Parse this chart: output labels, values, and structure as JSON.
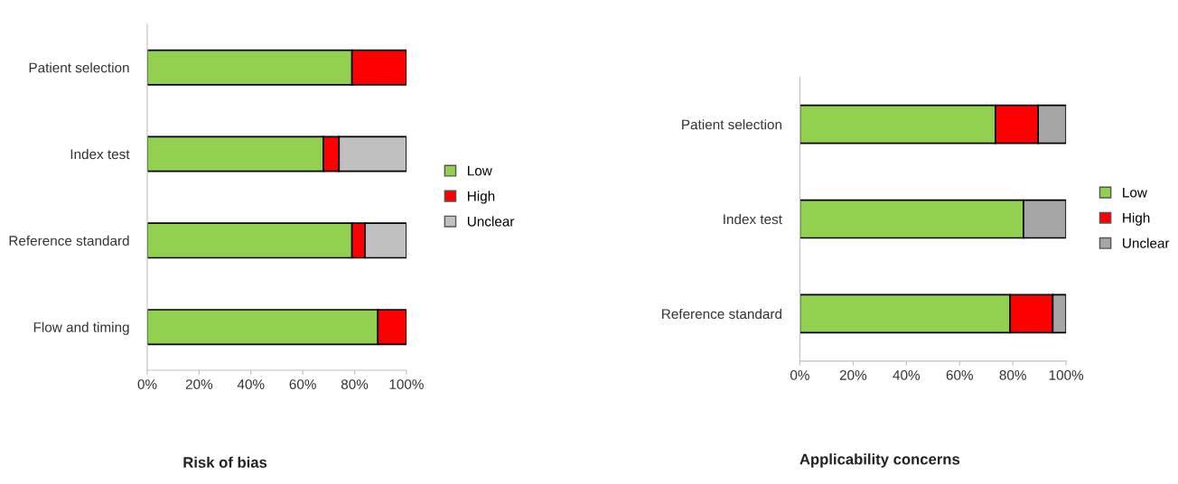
{
  "chart_data": [
    {
      "type": "bar",
      "orientation": "horizontal",
      "stacked": true,
      "title": "Risk of bias",
      "categories": [
        "Patient selection",
        "Index test",
        "Reference standard",
        "Flow and timing"
      ],
      "series": [
        {
          "name": "Low",
          "color": "#92d050",
          "values": [
            79,
            68,
            79,
            89
          ]
        },
        {
          "name": "High",
          "color": "#ff0000",
          "values": [
            21,
            6,
            5,
            11
          ]
        },
        {
          "name": "Unclear",
          "color": "#c0c0c0",
          "values": [
            0,
            26,
            16,
            0
          ]
        }
      ],
      "xlim": [
        0,
        100
      ],
      "xticks": [
        {
          "value": 0,
          "label": "0%"
        },
        {
          "value": 20,
          "label": "20%"
        },
        {
          "value": 40,
          "label": "40%"
        },
        {
          "value": 60,
          "label": "60%"
        },
        {
          "value": 80,
          "label": "80%"
        },
        {
          "value": 100,
          "label": "100%"
        }
      ],
      "grid": false,
      "legend": "right"
    },
    {
      "type": "bar",
      "orientation": "horizontal",
      "stacked": true,
      "title": "Applicability concerns",
      "categories": [
        "Patient selection",
        "Index test",
        "Reference standard"
      ],
      "series": [
        {
          "name": "Low",
          "color": "#92d050",
          "values": [
            73.5,
            84,
            79
          ]
        },
        {
          "name": "High",
          "color": "#ff0000",
          "values": [
            16,
            0,
            16
          ]
        },
        {
          "name": "Unclear",
          "color": "#a6a6a6",
          "values": [
            10.5,
            16,
            5
          ]
        }
      ],
      "xlim": [
        0,
        100
      ],
      "xticks": [
        {
          "value": 0,
          "label": "0%"
        },
        {
          "value": 20,
          "label": "20%"
        },
        {
          "value": 40,
          "label": "40%"
        },
        {
          "value": 60,
          "label": "60%"
        },
        {
          "value": 80,
          "label": "80%"
        },
        {
          "value": 100,
          "label": "100%"
        }
      ],
      "grid": false,
      "legend": "right"
    }
  ]
}
